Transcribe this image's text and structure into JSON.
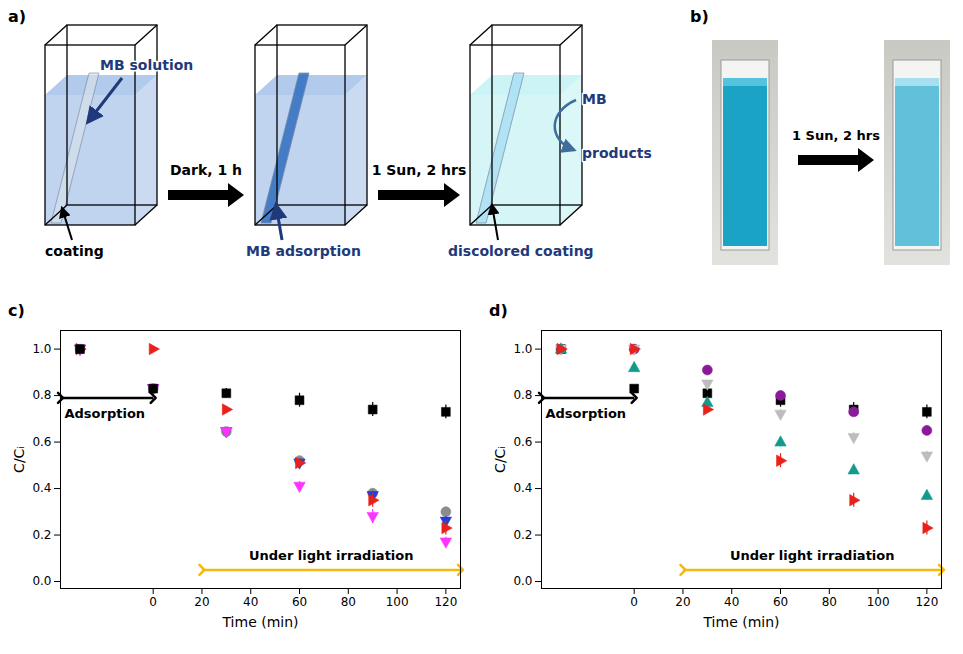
{
  "diagram": {
    "panel_a": {
      "panel_label": "a)",
      "solution_label": "MB solution",
      "coating_label": "coating",
      "step_1": "Dark, 1 h",
      "adsorbed_label": "MB adsorption",
      "step_2": "1 Sun, 2 hrs",
      "discolored_label": "discolored coating",
      "reactant": "MB",
      "product": "products"
    },
    "panel_b": {
      "panel_label": "b)",
      "step": "1 Sun, 2 hrs"
    }
  },
  "chart_data": [
    {
      "panel_label": "c)",
      "type": "scatter",
      "x_label": "Time (min)",
      "y_label": "C/Cᵢ",
      "x": [
        -30,
        0,
        30,
        60,
        90,
        120
      ],
      "xlim": [
        -38,
        126
      ],
      "xticks": [
        0,
        20,
        40,
        60,
        80,
        100,
        120
      ],
      "ylim": [
        -0.03,
        1.08
      ],
      "yticks": [
        {
          "value": 0,
          "label": "0.0"
        },
        {
          "value": 0.2,
          "label": "0.2"
        },
        {
          "value": 0.4,
          "label": "0.4"
        },
        {
          "value": 0.6,
          "label": "0.6"
        },
        {
          "value": 0.8,
          "label": "0.8"
        },
        {
          "value": 1,
          "label": "1.0"
        }
      ],
      "grid": false,
      "annotations": [
        {
          "text": "Adsorption",
          "x": [
            -38,
            0
          ],
          "y": 0.79,
          "color": "#000000"
        },
        {
          "text": "Under light irradiation",
          "x": [
            20,
            126
          ],
          "y": 0.05,
          "color": "#f5b80c"
        }
      ],
      "series": [
        {
          "color": "#8c8c8c",
          "marker": "circle",
          "values": [
            1,
            0.83,
            0.645,
            0.52,
            0.38,
            0.3
          ],
          "errors": [
            0.01,
            0.01,
            0.015,
            0.02,
            0.02,
            0.02
          ]
        },
        {
          "color": "#1f3fd8",
          "marker": "triangle-down",
          "values": [
            1,
            0.83,
            0.645,
            0.51,
            0.37,
            0.26
          ],
          "errors": [
            0.01,
            0.01,
            0.015,
            0.02,
            0.02,
            0.02
          ]
        },
        {
          "color": "#e8211a",
          "marker": "triangle-right",
          "values": [
            1,
            1,
            0.74,
            0.51,
            0.35,
            0.23
          ],
          "errors": [
            0.01,
            0.01,
            0.01,
            0.02,
            0.03,
            0.03
          ]
        },
        {
          "color": "#ff33ff",
          "marker": "triangle-down",
          "values": [
            1,
            0.83,
            0.645,
            0.41,
            0.28,
            0.17
          ],
          "errors": [
            0.01,
            0.01,
            0.015,
            0.02,
            0.03,
            0.02
          ]
        },
        {
          "color": "#000000",
          "marker": "square",
          "values": [
            1,
            0.83,
            0.81,
            0.78,
            0.74,
            0.73
          ],
          "errors": [
            0.01,
            0.01,
            0.02,
            0.03,
            0.03,
            0.03
          ]
        }
      ]
    },
    {
      "panel_label": "d)",
      "type": "scatter",
      "x_label": "Time (min)",
      "y_label": "C/Cᵢ",
      "x": [
        -30,
        0,
        30,
        60,
        90,
        120
      ],
      "xlim": [
        -38,
        126
      ],
      "xticks": [
        0,
        20,
        40,
        60,
        80,
        100,
        120
      ],
      "ylim": [
        -0.03,
        1.08
      ],
      "yticks": [
        {
          "value": 0,
          "label": "0.0"
        },
        {
          "value": 0.2,
          "label": "0.2"
        },
        {
          "value": 0.4,
          "label": "0.4"
        },
        {
          "value": 0.6,
          "label": "0.6"
        },
        {
          "value": 0.8,
          "label": "0.8"
        },
        {
          "value": 1,
          "label": "1.0"
        }
      ],
      "grid": false,
      "annotations": [
        {
          "text": "Adsorption",
          "x": [
            -38,
            0
          ],
          "y": 0.79,
          "color": "#000000"
        },
        {
          "text": "Under light irradiation",
          "x": [
            20,
            126
          ],
          "y": 0.05,
          "color": "#f5b80c"
        }
      ],
      "series": [
        {
          "color": "#000000",
          "marker": "square",
          "values": [
            1,
            0.83,
            0.81,
            0.78,
            0.74,
            0.73
          ],
          "errors": [
            0.01,
            0.01,
            0.02,
            0.03,
            0.03,
            0.03
          ]
        },
        {
          "color": "#8b1a9a",
          "marker": "circle",
          "values": [
            1,
            1,
            0.91,
            0.8,
            0.73,
            0.65
          ],
          "errors": [
            0.01,
            0.01,
            0.015,
            0.02,
            0.02,
            0.02
          ]
        },
        {
          "color": "#bdbdbd",
          "marker": "triangle-down",
          "values": [
            1,
            1,
            0.85,
            0.72,
            0.62,
            0.54
          ],
          "errors": [
            0.01,
            0.01,
            0.015,
            0.02,
            0.02,
            0.02
          ]
        },
        {
          "color": "#139a8c",
          "marker": "triangle-up",
          "values": [
            1,
            0.92,
            0.77,
            0.6,
            0.48,
            0.37
          ],
          "errors": [
            0.01,
            0.01,
            0.015,
            0.02,
            0.02,
            0.02
          ]
        },
        {
          "color": "#e8211a",
          "marker": "triangle-right",
          "values": [
            1,
            1,
            0.74,
            0.52,
            0.35,
            0.23
          ],
          "errors": [
            0.01,
            0.01,
            0.01,
            0.03,
            0.03,
            0.03
          ]
        }
      ]
    }
  ]
}
